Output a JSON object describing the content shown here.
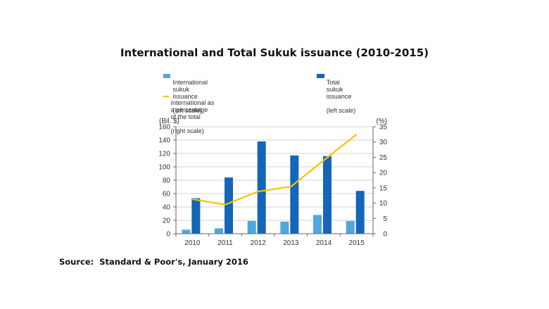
{
  "title": "International and Total Sukuk issuance (2010-2015)",
  "source": "Source:  Standard & Poor's, January 2016",
  "chart_data": {
    "type": "bar",
    "categories": [
      "2010",
      "2011",
      "2012",
      "2013",
      "2014",
      "2015"
    ],
    "series": [
      {
        "name": "International sukuk issuance (left scale)",
        "kind": "bar",
        "axis": "left",
        "color": "#4fa8dc",
        "values": [
          6,
          8,
          19,
          18,
          28,
          19
        ]
      },
      {
        "name": "Total sukuk issuance (left scale)",
        "kind": "bar",
        "axis": "left",
        "color": "#1565b8",
        "values": [
          53,
          84,
          138,
          117,
          116,
          64
        ]
      },
      {
        "name": "International as a percentage of the total (right scale)",
        "kind": "line",
        "axis": "right",
        "color": "#f5c400",
        "values": [
          11.3,
          9.5,
          13.8,
          15.4,
          24,
          32.5
        ]
      }
    ],
    "legend": [
      {
        "line1": "International sukuk issuance",
        "line2": "(left scale)"
      },
      {
        "line1": "Total sukuk issuance",
        "line2": "(left scale)"
      },
      {
        "line1": "International as a percentage of the total",
        "line2": "(right scale)"
      }
    ],
    "ylabel_left": "(Bil. $)",
    "ylabel_right": "(%)",
    "ylim_left": [
      0,
      160
    ],
    "ylim_right": [
      0,
      35
    ],
    "yticks_left": [
      "0",
      "20",
      "40",
      "60",
      "80",
      "100",
      "120",
      "140",
      "160"
    ],
    "yticks_right": [
      "0",
      "5",
      "10",
      "15",
      "20",
      "25",
      "30",
      "35"
    ],
    "grid": true,
    "legend_position": "top"
  }
}
